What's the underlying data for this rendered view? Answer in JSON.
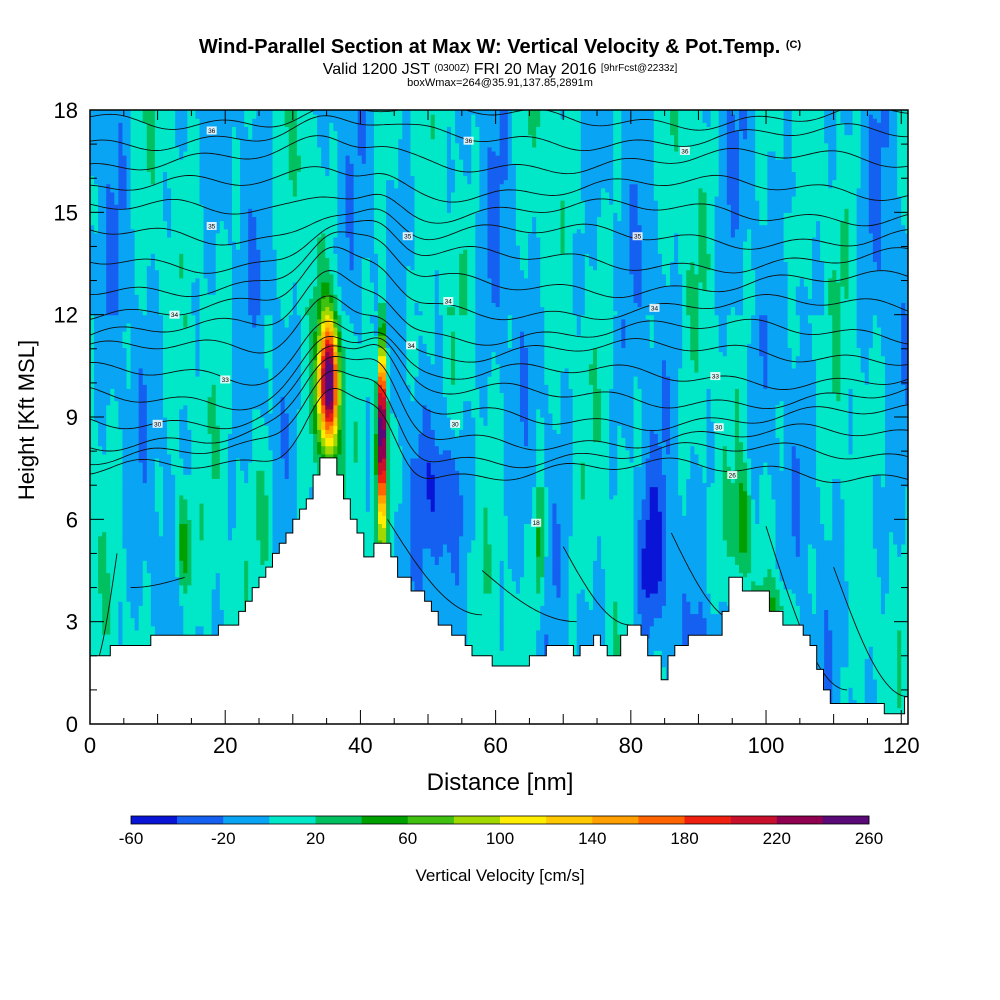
{
  "title": "Wind-Parallel Section at Max W: Vertical Velocity & Pot.Temp.",
  "title_mark": "(C)",
  "subtitle_prefix": "Valid 1200 JST",
  "subtitle_utc": "(0300Z)",
  "subtitle_date": "FRI 20 May 2016",
  "subtitle_fcst": "[9hrFcst@2233z]",
  "subtitle2": "boxWmax=264@35.91,137.85,2891m",
  "chart_data": {
    "type": "heatmap",
    "xlabel": "Distance [nm]",
    "ylabel": "Height [Kft MSL]",
    "xlim": [
      0,
      121
    ],
    "ylim": [
      0,
      18
    ],
    "xticks": [
      0,
      20,
      40,
      60,
      80,
      100,
      120
    ],
    "yticks": [
      0,
      3,
      6,
      9,
      12,
      15,
      18
    ],
    "colorbar": {
      "label": "Vertical Velocity [cm/s]",
      "ticks": [
        -60,
        -20,
        20,
        60,
        100,
        140,
        180,
        220,
        260
      ],
      "levels": [
        -60,
        -40,
        -20,
        0,
        20,
        40,
        60,
        80,
        100,
        120,
        140,
        160,
        180,
        200,
        220,
        240,
        260
      ],
      "colors": [
        "#0a14d6",
        "#1560f0",
        "#0aa4f5",
        "#00e8c8",
        "#00c060",
        "#00a000",
        "#40c010",
        "#a0d800",
        "#ffee00",
        "#ffc800",
        "#ffa000",
        "#ff6400",
        "#f02010",
        "#c8102c",
        "#900050",
        "#5a0a78"
      ]
    },
    "terrain": [
      [
        0,
        2.0
      ],
      [
        3,
        2.0
      ],
      [
        3,
        2.3
      ],
      [
        9,
        2.3
      ],
      [
        9,
        2.6
      ],
      [
        19,
        2.6
      ],
      [
        19,
        2.9
      ],
      [
        22,
        2.9
      ],
      [
        22,
        3.3
      ],
      [
        23,
        3.3
      ],
      [
        23,
        3.6
      ],
      [
        24,
        3.6
      ],
      [
        24,
        4.0
      ],
      [
        25,
        4.0
      ],
      [
        25,
        4.3
      ],
      [
        26,
        4.3
      ],
      [
        26,
        4.6
      ],
      [
        27,
        4.6
      ],
      [
        27,
        5.0
      ],
      [
        28,
        5.0
      ],
      [
        28,
        5.3
      ],
      [
        29,
        5.3
      ],
      [
        29,
        5.6
      ],
      [
        30,
        5.6
      ],
      [
        30,
        6.0
      ],
      [
        31,
        6.0
      ],
      [
        31,
        6.3
      ],
      [
        32,
        6.3
      ],
      [
        32,
        6.6
      ],
      [
        33,
        6.6
      ],
      [
        33,
        7.3
      ],
      [
        34,
        7.3
      ],
      [
        34,
        7.8
      ],
      [
        36.5,
        7.8
      ],
      [
        36.5,
        7.3
      ],
      [
        37.5,
        7.3
      ],
      [
        37.5,
        6.6
      ],
      [
        38.5,
        6.6
      ],
      [
        38.5,
        6.0
      ],
      [
        39.5,
        6.0
      ],
      [
        39.5,
        5.6
      ],
      [
        40.5,
        5.6
      ],
      [
        40.5,
        4.9
      ],
      [
        42,
        4.9
      ],
      [
        42,
        5.3
      ],
      [
        44.5,
        5.3
      ],
      [
        44.5,
        4.9
      ],
      [
        45.5,
        4.9
      ],
      [
        45.5,
        4.3
      ],
      [
        47.5,
        4.3
      ],
      [
        47.5,
        3.9
      ],
      [
        49.5,
        3.9
      ],
      [
        49.5,
        3.6
      ],
      [
        50.5,
        3.6
      ],
      [
        50.5,
        3.3
      ],
      [
        51.5,
        3.3
      ],
      [
        51.5,
        2.9
      ],
      [
        53.5,
        2.9
      ],
      [
        53.5,
        2.6
      ],
      [
        55.5,
        2.6
      ],
      [
        55.5,
        2.3
      ],
      [
        56.5,
        2.3
      ],
      [
        56.5,
        2.0
      ],
      [
        59.5,
        2.0
      ],
      [
        59.5,
        1.7
      ],
      [
        65,
        1.7
      ],
      [
        65,
        2.0
      ],
      [
        67.5,
        2.0
      ],
      [
        67.5,
        2.3
      ],
      [
        71.5,
        2.3
      ],
      [
        71.5,
        2.0
      ],
      [
        72.5,
        2.0
      ],
      [
        72.5,
        2.3
      ],
      [
        74.5,
        2.3
      ],
      [
        74.5,
        2.6
      ],
      [
        75.5,
        2.6
      ],
      [
        75.5,
        2.3
      ],
      [
        76.5,
        2.3
      ],
      [
        76.5,
        2.0
      ],
      [
        78.5,
        2.0
      ],
      [
        78.5,
        2.6
      ],
      [
        79.5,
        2.6
      ],
      [
        79.5,
        2.9
      ],
      [
        81.5,
        2.9
      ],
      [
        81.5,
        2.6
      ],
      [
        82.5,
        2.6
      ],
      [
        82.5,
        2.0
      ],
      [
        84.5,
        2.0
      ],
      [
        84.5,
        1.3
      ],
      [
        85.5,
        1.3
      ],
      [
        85.5,
        2.0
      ],
      [
        86.5,
        2.0
      ],
      [
        86.5,
        2.3
      ],
      [
        88.5,
        2.3
      ],
      [
        88.5,
        2.6
      ],
      [
        93.5,
        2.6
      ],
      [
        93.5,
        3.3
      ],
      [
        94.5,
        3.3
      ],
      [
        94.5,
        4.3
      ],
      [
        96.5,
        4.3
      ],
      [
        96.5,
        3.9
      ],
      [
        100.5,
        3.9
      ],
      [
        100.5,
        3.3
      ],
      [
        102.5,
        3.3
      ],
      [
        102.5,
        2.9
      ],
      [
        105.5,
        2.9
      ],
      [
        105.5,
        2.6
      ],
      [
        106.5,
        2.6
      ],
      [
        106.5,
        2.3
      ],
      [
        107.5,
        2.3
      ],
      [
        107.5,
        1.6
      ],
      [
        108.5,
        1.6
      ],
      [
        108.5,
        1.0
      ],
      [
        109.5,
        1.0
      ],
      [
        109.5,
        0.6
      ],
      [
        117.5,
        0.6
      ],
      [
        117.5,
        0.3
      ],
      [
        120.5,
        0.3
      ],
      [
        120.5,
        0.8
      ],
      [
        121,
        0.8
      ]
    ],
    "pot_temp_contour_labels": [
      {
        "text": "36",
        "x": 18,
        "y": 17.4
      },
      {
        "text": "36",
        "x": 56,
        "y": 17.1
      },
      {
        "text": "36",
        "x": 88,
        "y": 16.8
      },
      {
        "text": "35",
        "x": 18,
        "y": 14.6
      },
      {
        "text": "35",
        "x": 47,
        "y": 14.3
      },
      {
        "text": "35",
        "x": 81,
        "y": 14.3
      },
      {
        "text": "34",
        "x": 12.5,
        "y": 12.0
      },
      {
        "text": "34",
        "x": 53,
        "y": 12.4
      },
      {
        "text": "34",
        "x": 83.5,
        "y": 12.2
      },
      {
        "text": "34",
        "x": 47.5,
        "y": 11.1
      },
      {
        "text": "33",
        "x": 20,
        "y": 10.1
      },
      {
        "text": "33",
        "x": 92.5,
        "y": 10.2
      },
      {
        "text": "30",
        "x": 10,
        "y": 8.8
      },
      {
        "text": "30",
        "x": 54,
        "y": 8.8
      },
      {
        "text": "30",
        "x": 93,
        "y": 8.7
      },
      {
        "text": "26",
        "x": 95,
        "y": 7.3
      },
      {
        "text": "18",
        "x": 66,
        "y": 5.9
      }
    ]
  }
}
